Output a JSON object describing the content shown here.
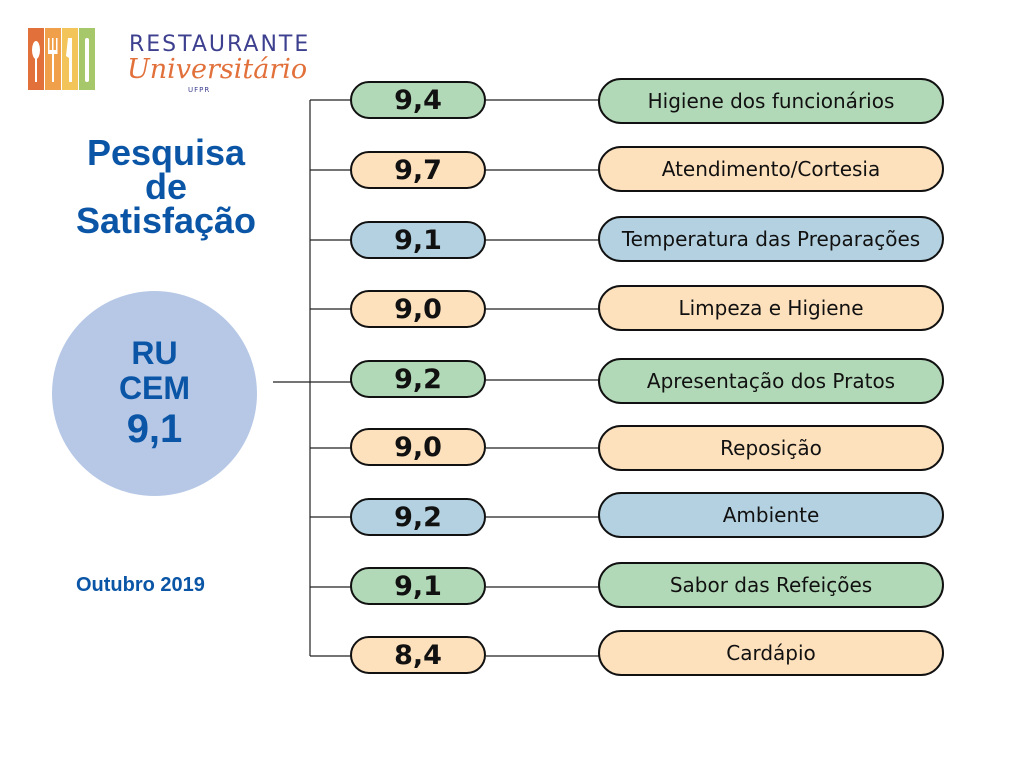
{
  "logo": {
    "line1": "RESTAURANTE",
    "line2": "Universitário",
    "line3": "UFPR",
    "colors": [
      "#e2703a",
      "#f0a04a",
      "#f2c45a",
      "#a6c76a"
    ]
  },
  "title": [
    "Pesquisa",
    "de",
    "Satisfação"
  ],
  "summary": {
    "line1": "RU",
    "line2": "CEM",
    "score": "9,1"
  },
  "date": "Outubro 2019",
  "colors": {
    "green": "#b2d9b7",
    "peach": "#fde0bc",
    "blue": "#b3d1e0",
    "title": "#0b55a6",
    "circle": "#b6c8e6"
  },
  "items": [
    {
      "score": "9,4",
      "label": "Higiene dos funcionários",
      "color": "green"
    },
    {
      "score": "9,7",
      "label": "Atendimento/Cortesia",
      "color": "peach"
    },
    {
      "score": "9,1",
      "label": "Temperatura das Preparações",
      "color": "blue"
    },
    {
      "score": "9,0",
      "label": "Limpeza e Higiene",
      "color": "peach"
    },
    {
      "score": "9,2",
      "label": "Apresentação dos Pratos",
      "color": "green"
    },
    {
      "score": "9,0",
      "label": "Reposição",
      "color": "peach"
    },
    {
      "score": "9,2",
      "label": "Ambiente",
      "color": "blue"
    },
    {
      "score": "9,1",
      "label": "Sabor das Refeições",
      "color": "green"
    },
    {
      "score": "8,4",
      "label": "Cardápio",
      "color": "peach"
    }
  ]
}
